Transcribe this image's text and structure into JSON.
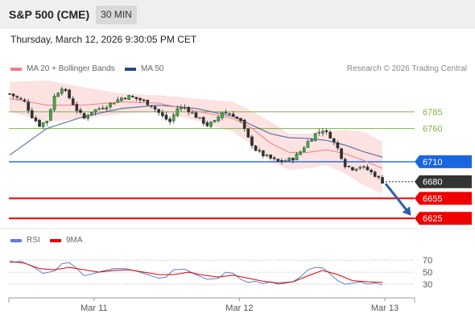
{
  "header": {
    "instrument": "S&P 500 (CME)",
    "timeframe": "30 MIN"
  },
  "datetime": "Thursday, March 12, 2026 9:30:05 PM CET",
  "legend": {
    "ma20": {
      "label": "MA 20 + Bollinger Bands",
      "color": "#f08080"
    },
    "ma50": {
      "label": "MA 50",
      "color": "#1f4e8c"
    },
    "copyright": "Research © 2026 Trading Central"
  },
  "rsi_legend": {
    "rsi": {
      "label": "RSI",
      "color": "#5b7fd6"
    },
    "ma9": {
      "label": "9MA",
      "color": "#e00000"
    }
  },
  "chart_data": [
    {
      "type": "candlestick",
      "ylim": [
        6612,
        6832
      ],
      "x_ticks": [
        {
          "label": "Mar 11",
          "index": 22
        },
        {
          "label": "Mar 12",
          "index": 61
        },
        {
          "label": "Mar 13",
          "index": 100
        }
      ],
      "levels": [
        {
          "label": "6785",
          "value": 6785,
          "kind": "resistance",
          "color": "#7cb342"
        },
        {
          "label": "6760",
          "value": 6760,
          "kind": "resistance",
          "color": "#7cb342"
        },
        {
          "label": "6710",
          "value": 6710,
          "kind": "pivot",
          "color": "#1a66e0"
        },
        {
          "label": "6680",
          "value": 6680,
          "kind": "last",
          "color": "#333333"
        },
        {
          "label": "6655",
          "value": 6655,
          "kind": "support",
          "color": "#ee0000"
        },
        {
          "label": "6625",
          "value": 6625,
          "kind": "support",
          "color": "#ee0000"
        }
      ],
      "price_path": [
        [
          0,
          6812
        ],
        [
          4,
          6800
        ],
        [
          6,
          6778
        ],
        [
          8,
          6765
        ],
        [
          10,
          6772
        ],
        [
          12,
          6808
        ],
        [
          14,
          6822
        ],
        [
          16,
          6806
        ],
        [
          18,
          6788
        ],
        [
          20,
          6775
        ],
        [
          22,
          6786
        ],
        [
          26,
          6794
        ],
        [
          30,
          6806
        ],
        [
          32,
          6808
        ],
        [
          35,
          6803
        ],
        [
          38,
          6795
        ],
        [
          41,
          6778
        ],
        [
          43,
          6770
        ],
        [
          45,
          6790
        ],
        [
          47,
          6792
        ],
        [
          50,
          6778
        ],
        [
          53,
          6765
        ],
        [
          55,
          6770
        ],
        [
          57,
          6785
        ],
        [
          60,
          6780
        ],
        [
          62,
          6770
        ],
        [
          64,
          6745
        ],
        [
          66,
          6728
        ],
        [
          68,
          6720
        ],
        [
          70,
          6715
        ],
        [
          72,
          6710
        ],
        [
          74,
          6712
        ],
        [
          76,
          6715
        ],
        [
          78,
          6725
        ],
        [
          80,
          6740
        ],
        [
          82,
          6752
        ],
        [
          84,
          6758
        ],
        [
          86,
          6748
        ],
        [
          88,
          6730
        ],
        [
          90,
          6705
        ],
        [
          92,
          6700
        ],
        [
          94,
          6703
        ],
        [
          96,
          6698
        ],
        [
          98,
          6690
        ],
        [
          100,
          6680
        ]
      ],
      "ma50_path": [
        [
          0,
          6720
        ],
        [
          10,
          6760
        ],
        [
          20,
          6778
        ],
        [
          30,
          6790
        ],
        [
          40,
          6795
        ],
        [
          50,
          6790
        ],
        [
          60,
          6778
        ],
        [
          65,
          6765
        ],
        [
          70,
          6752
        ],
        [
          75,
          6746
        ],
        [
          80,
          6745
        ],
        [
          85,
          6742
        ],
        [
          90,
          6735
        ],
        [
          95,
          6725
        ],
        [
          100,
          6717
        ]
      ],
      "ma20_path": [
        [
          0,
          6805
        ],
        [
          10,
          6795
        ],
        [
          20,
          6795
        ],
        [
          30,
          6800
        ],
        [
          40,
          6798
        ],
        [
          50,
          6786
        ],
        [
          60,
          6775
        ],
        [
          65,
          6760
        ],
        [
          70,
          6738
        ],
        [
          75,
          6724
        ],
        [
          80,
          6724
        ],
        [
          85,
          6728
        ],
        [
          90,
          6722
        ],
        [
          95,
          6712
        ],
        [
          100,
          6700
        ]
      ],
      "bb_upper": [
        [
          0,
          6830
        ],
        [
          10,
          6832
        ],
        [
          20,
          6822
        ],
        [
          30,
          6812
        ],
        [
          40,
          6810
        ],
        [
          50,
          6805
        ],
        [
          60,
          6800
        ],
        [
          65,
          6786
        ],
        [
          70,
          6770
        ],
        [
          75,
          6752
        ],
        [
          80,
          6752
        ],
        [
          85,
          6756
        ],
        [
          90,
          6758
        ],
        [
          95,
          6755
        ],
        [
          100,
          6740
        ]
      ],
      "bb_lower": [
        [
          0,
          6785
        ],
        [
          10,
          6770
        ],
        [
          20,
          6775
        ],
        [
          30,
          6782
        ],
        [
          40,
          6785
        ],
        [
          50,
          6772
        ],
        [
          60,
          6755
        ],
        [
          65,
          6735
        ],
        [
          70,
          6710
        ],
        [
          75,
          6698
        ],
        [
          80,
          6700
        ],
        [
          85,
          6705
        ],
        [
          90,
          6692
        ],
        [
          95,
          6675
        ],
        [
          100,
          6662
        ]
      ],
      "forecast_arrow": {
        "from_index": 100,
        "from_value": 6677,
        "to_index": 108,
        "to_value": 6628,
        "color": "#2d5fa8"
      }
    },
    {
      "type": "line",
      "name": "RSI panel",
      "ylim": [
        10,
        85
      ],
      "y_ticks": [
        70,
        50,
        30
      ],
      "series": [
        {
          "name": "RSI",
          "color": "#5b7fd6",
          "values": [
            [
              0,
              66
            ],
            [
              3,
              68
            ],
            [
              6,
              60
            ],
            [
              9,
              48
            ],
            [
              12,
              52
            ],
            [
              14,
              64
            ],
            [
              16,
              66
            ],
            [
              18,
              56
            ],
            [
              20,
              44
            ],
            [
              22,
              47
            ],
            [
              25,
              52
            ],
            [
              28,
              56
            ],
            [
              31,
              56
            ],
            [
              34,
              52
            ],
            [
              37,
              46
            ],
            [
              40,
              40
            ],
            [
              42,
              42
            ],
            [
              44,
              54
            ],
            [
              47,
              55
            ],
            [
              50,
              46
            ],
            [
              53,
              38
            ],
            [
              56,
              40
            ],
            [
              58,
              50
            ],
            [
              60,
              48
            ],
            [
              62,
              38
            ],
            [
              64,
              33
            ],
            [
              66,
              35
            ],
            [
              68,
              31
            ],
            [
              70,
              34
            ],
            [
              72,
              30
            ],
            [
              74,
              32
            ],
            [
              76,
              34
            ],
            [
              78,
              42
            ],
            [
              80,
              54
            ],
            [
              82,
              58
            ],
            [
              84,
              57
            ],
            [
              86,
              47
            ],
            [
              88,
              36
            ],
            [
              90,
              30
            ],
            [
              92,
              32
            ],
            [
              94,
              34
            ],
            [
              96,
              30
            ],
            [
              98,
              32
            ],
            [
              100,
              29
            ]
          ]
        },
        {
          "name": "9MA",
          "color": "#e00000",
          "values": [
            [
              0,
              68
            ],
            [
              4,
              65
            ],
            [
              8,
              56
            ],
            [
              12,
              54
            ],
            [
              16,
              58
            ],
            [
              20,
              54
            ],
            [
              24,
              50
            ],
            [
              28,
              53
            ],
            [
              32,
              54
            ],
            [
              36,
              50
            ],
            [
              40,
              46
            ],
            [
              44,
              46
            ],
            [
              48,
              50
            ],
            [
              52,
              45
            ],
            [
              56,
              42
            ],
            [
              60,
              45
            ],
            [
              64,
              40
            ],
            [
              68,
              35
            ],
            [
              72,
              32
            ],
            [
              76,
              34
            ],
            [
              80,
              44
            ],
            [
              84,
              53
            ],
            [
              88,
              46
            ],
            [
              92,
              36
            ],
            [
              96,
              34
            ],
            [
              100,
              33
            ]
          ]
        }
      ]
    }
  ]
}
